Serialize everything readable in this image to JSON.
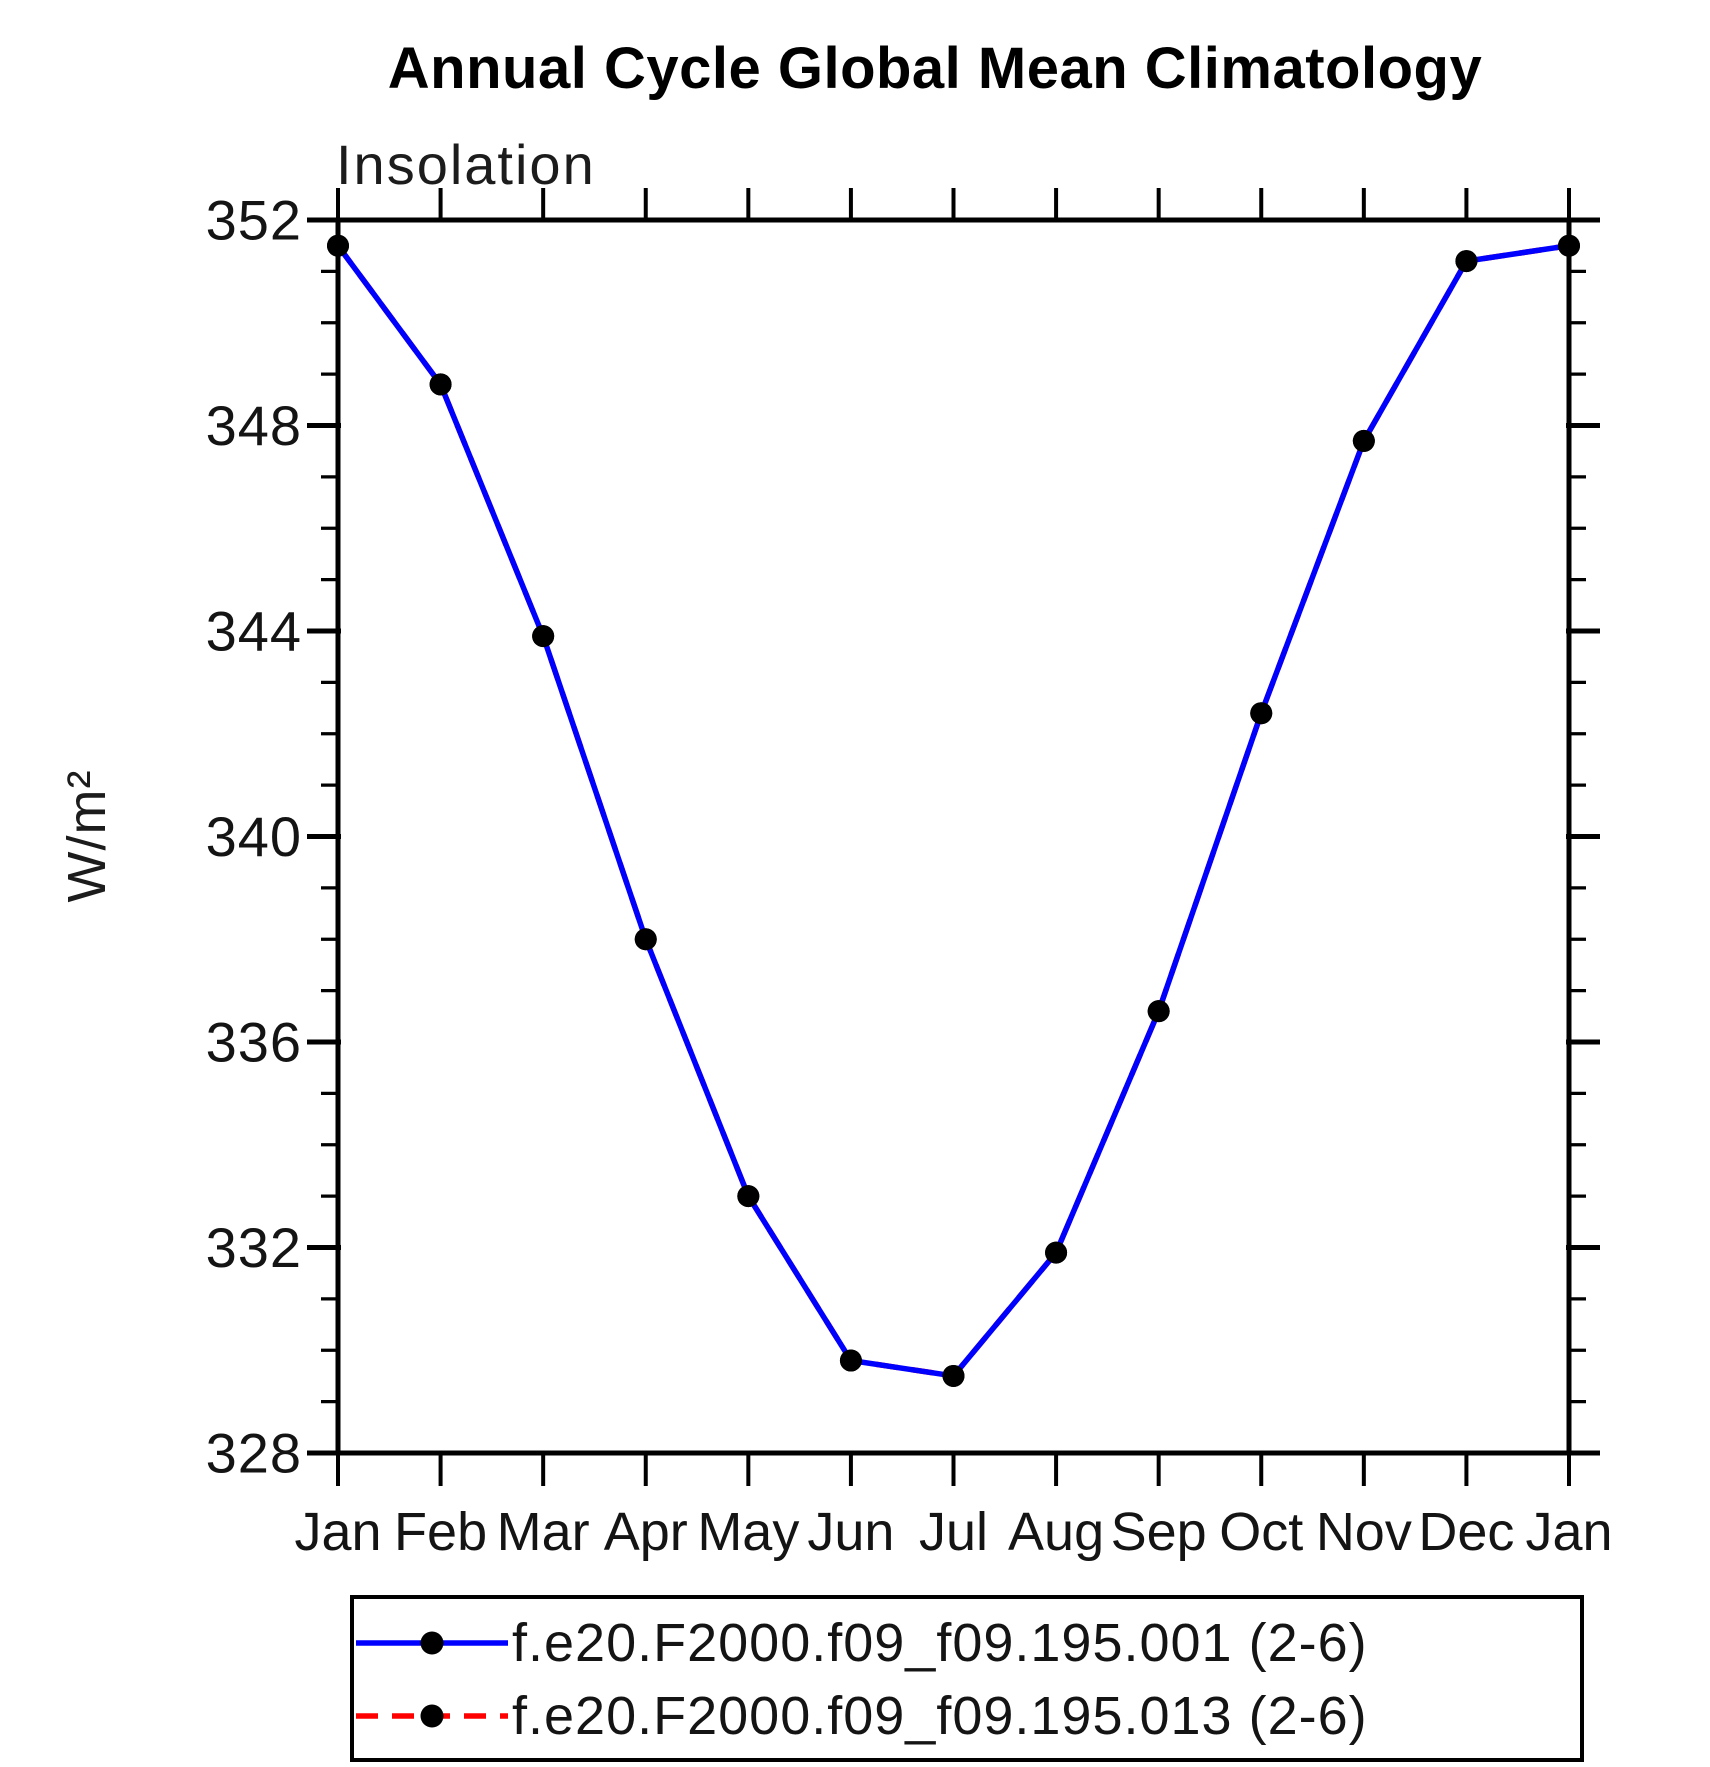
{
  "chart_data": {
    "type": "line",
    "title": "Annual Cycle Global Mean Climatology",
    "subtitle": "Insolation",
    "ylabel": "W/m²",
    "categories": [
      "Jan",
      "Feb",
      "Mar",
      "Apr",
      "May",
      "Jun",
      "Jul",
      "Aug",
      "Sep",
      "Oct",
      "Nov",
      "Dec",
      "Jan"
    ],
    "series": [
      {
        "name": "f.e20.F2000.f09_f09.195.001 (2-6)",
        "color": "#0000ff",
        "line_style": "solid",
        "marker": "filled-circle",
        "marker_color": "#000000",
        "values": [
          351.5,
          348.8,
          343.9,
          338.0,
          333.0,
          329.8,
          329.5,
          331.9,
          336.6,
          342.4,
          347.7,
          351.2,
          351.5
        ]
      },
      {
        "name": "f.e20.F2000.f09_f09.195.013 (2-6)",
        "color": "#ff0000",
        "line_style": "dashed",
        "marker": "filled-circle",
        "marker_color": "#000000",
        "values": [
          351.5,
          348.8,
          343.9,
          338.0,
          333.0,
          329.8,
          329.5,
          331.9,
          336.6,
          342.4,
          347.7,
          351.2,
          351.5
        ],
        "note": "curve coincides with series .001 and is hidden beneath the blue solid line"
      }
    ],
    "ylim": [
      328,
      352
    ],
    "yticks_major": [
      328,
      332,
      336,
      340,
      344,
      348,
      352
    ],
    "ytick_minor_step": 1,
    "grid": false,
    "frame": "box-with-outward-ticks",
    "frame_color": "#000000",
    "legend_position": "bottom-left-box"
  }
}
